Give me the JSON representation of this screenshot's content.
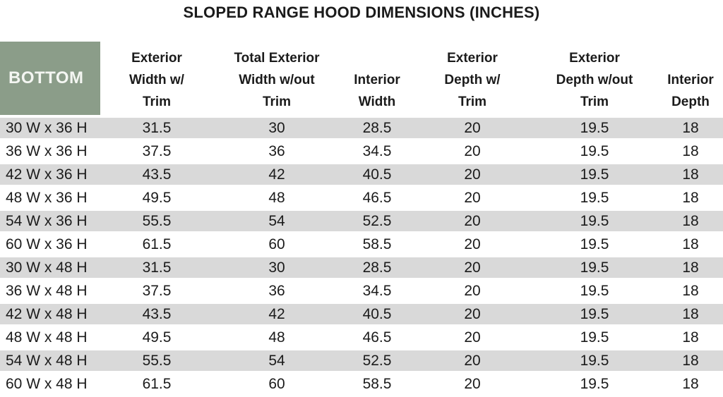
{
  "title": "SLOPED RANGE HOOD DIMENSIONS (INCHES)",
  "colors": {
    "corner_header_bg": "#8b9d89",
    "corner_header_text": "#f4f6f2",
    "row_stripe": "#d9d9d9",
    "row_plain": "#ffffff",
    "text": "#1b1b1b"
  },
  "chart_data": {
    "type": "table",
    "title": "SLOPED RANGE HOOD DIMENSIONS (INCHES)",
    "corner_header": "BOTTOM",
    "columns": [
      {
        "label": "Exterior Width w/ Trim",
        "lines": [
          "Exterior",
          "Width w/",
          "Trim"
        ]
      },
      {
        "label": "Total Exterior Width w/out Trim",
        "lines": [
          "Total Exterior",
          "Width w/out",
          "Trim"
        ]
      },
      {
        "label": "Interior Width",
        "lines": [
          "Interior",
          "Width"
        ]
      },
      {
        "label": "Exterior Depth w/ Trim",
        "lines": [
          "Exterior",
          "Depth w/",
          "Trim"
        ]
      },
      {
        "label": "Exterior Depth w/out Trim",
        "lines": [
          "Exterior",
          "Depth w/out",
          "Trim"
        ]
      },
      {
        "label": "Interior Depth",
        "lines": [
          "Interior",
          "Depth"
        ]
      }
    ],
    "rows": [
      {
        "label": "30 W x 36 H",
        "values": [
          "31.5",
          "30",
          "28.5",
          "20",
          "19.5",
          "18"
        ]
      },
      {
        "label": "36 W x 36 H",
        "values": [
          "37.5",
          "36",
          "34.5",
          "20",
          "19.5",
          "18"
        ]
      },
      {
        "label": "42 W x 36 H",
        "values": [
          "43.5",
          "42",
          "40.5",
          "20",
          "19.5",
          "18"
        ]
      },
      {
        "label": "48 W x 36 H",
        "values": [
          "49.5",
          "48",
          "46.5",
          "20",
          "19.5",
          "18"
        ]
      },
      {
        "label": "54 W x 36 H",
        "values": [
          "55.5",
          "54",
          "52.5",
          "20",
          "19.5",
          "18"
        ]
      },
      {
        "label": "60 W x 36 H",
        "values": [
          "61.5",
          "60",
          "58.5",
          "20",
          "19.5",
          "18"
        ]
      },
      {
        "label": "30 W x 48 H",
        "values": [
          "31.5",
          "30",
          "28.5",
          "20",
          "19.5",
          "18"
        ]
      },
      {
        "label": "36 W x 48 H",
        "values": [
          "37.5",
          "36",
          "34.5",
          "20",
          "19.5",
          "18"
        ]
      },
      {
        "label": "42 W x 48 H",
        "values": [
          "43.5",
          "42",
          "40.5",
          "20",
          "19.5",
          "18"
        ]
      },
      {
        "label": "48 W x 48 H",
        "values": [
          "49.5",
          "48",
          "46.5",
          "20",
          "19.5",
          "18"
        ]
      },
      {
        "label": "54 W x 48 H",
        "values": [
          "55.5",
          "54",
          "52.5",
          "20",
          "19.5",
          "18"
        ]
      },
      {
        "label": "60 W x 48 H",
        "values": [
          "61.5",
          "60",
          "58.5",
          "20",
          "19.5",
          "18"
        ]
      }
    ]
  }
}
